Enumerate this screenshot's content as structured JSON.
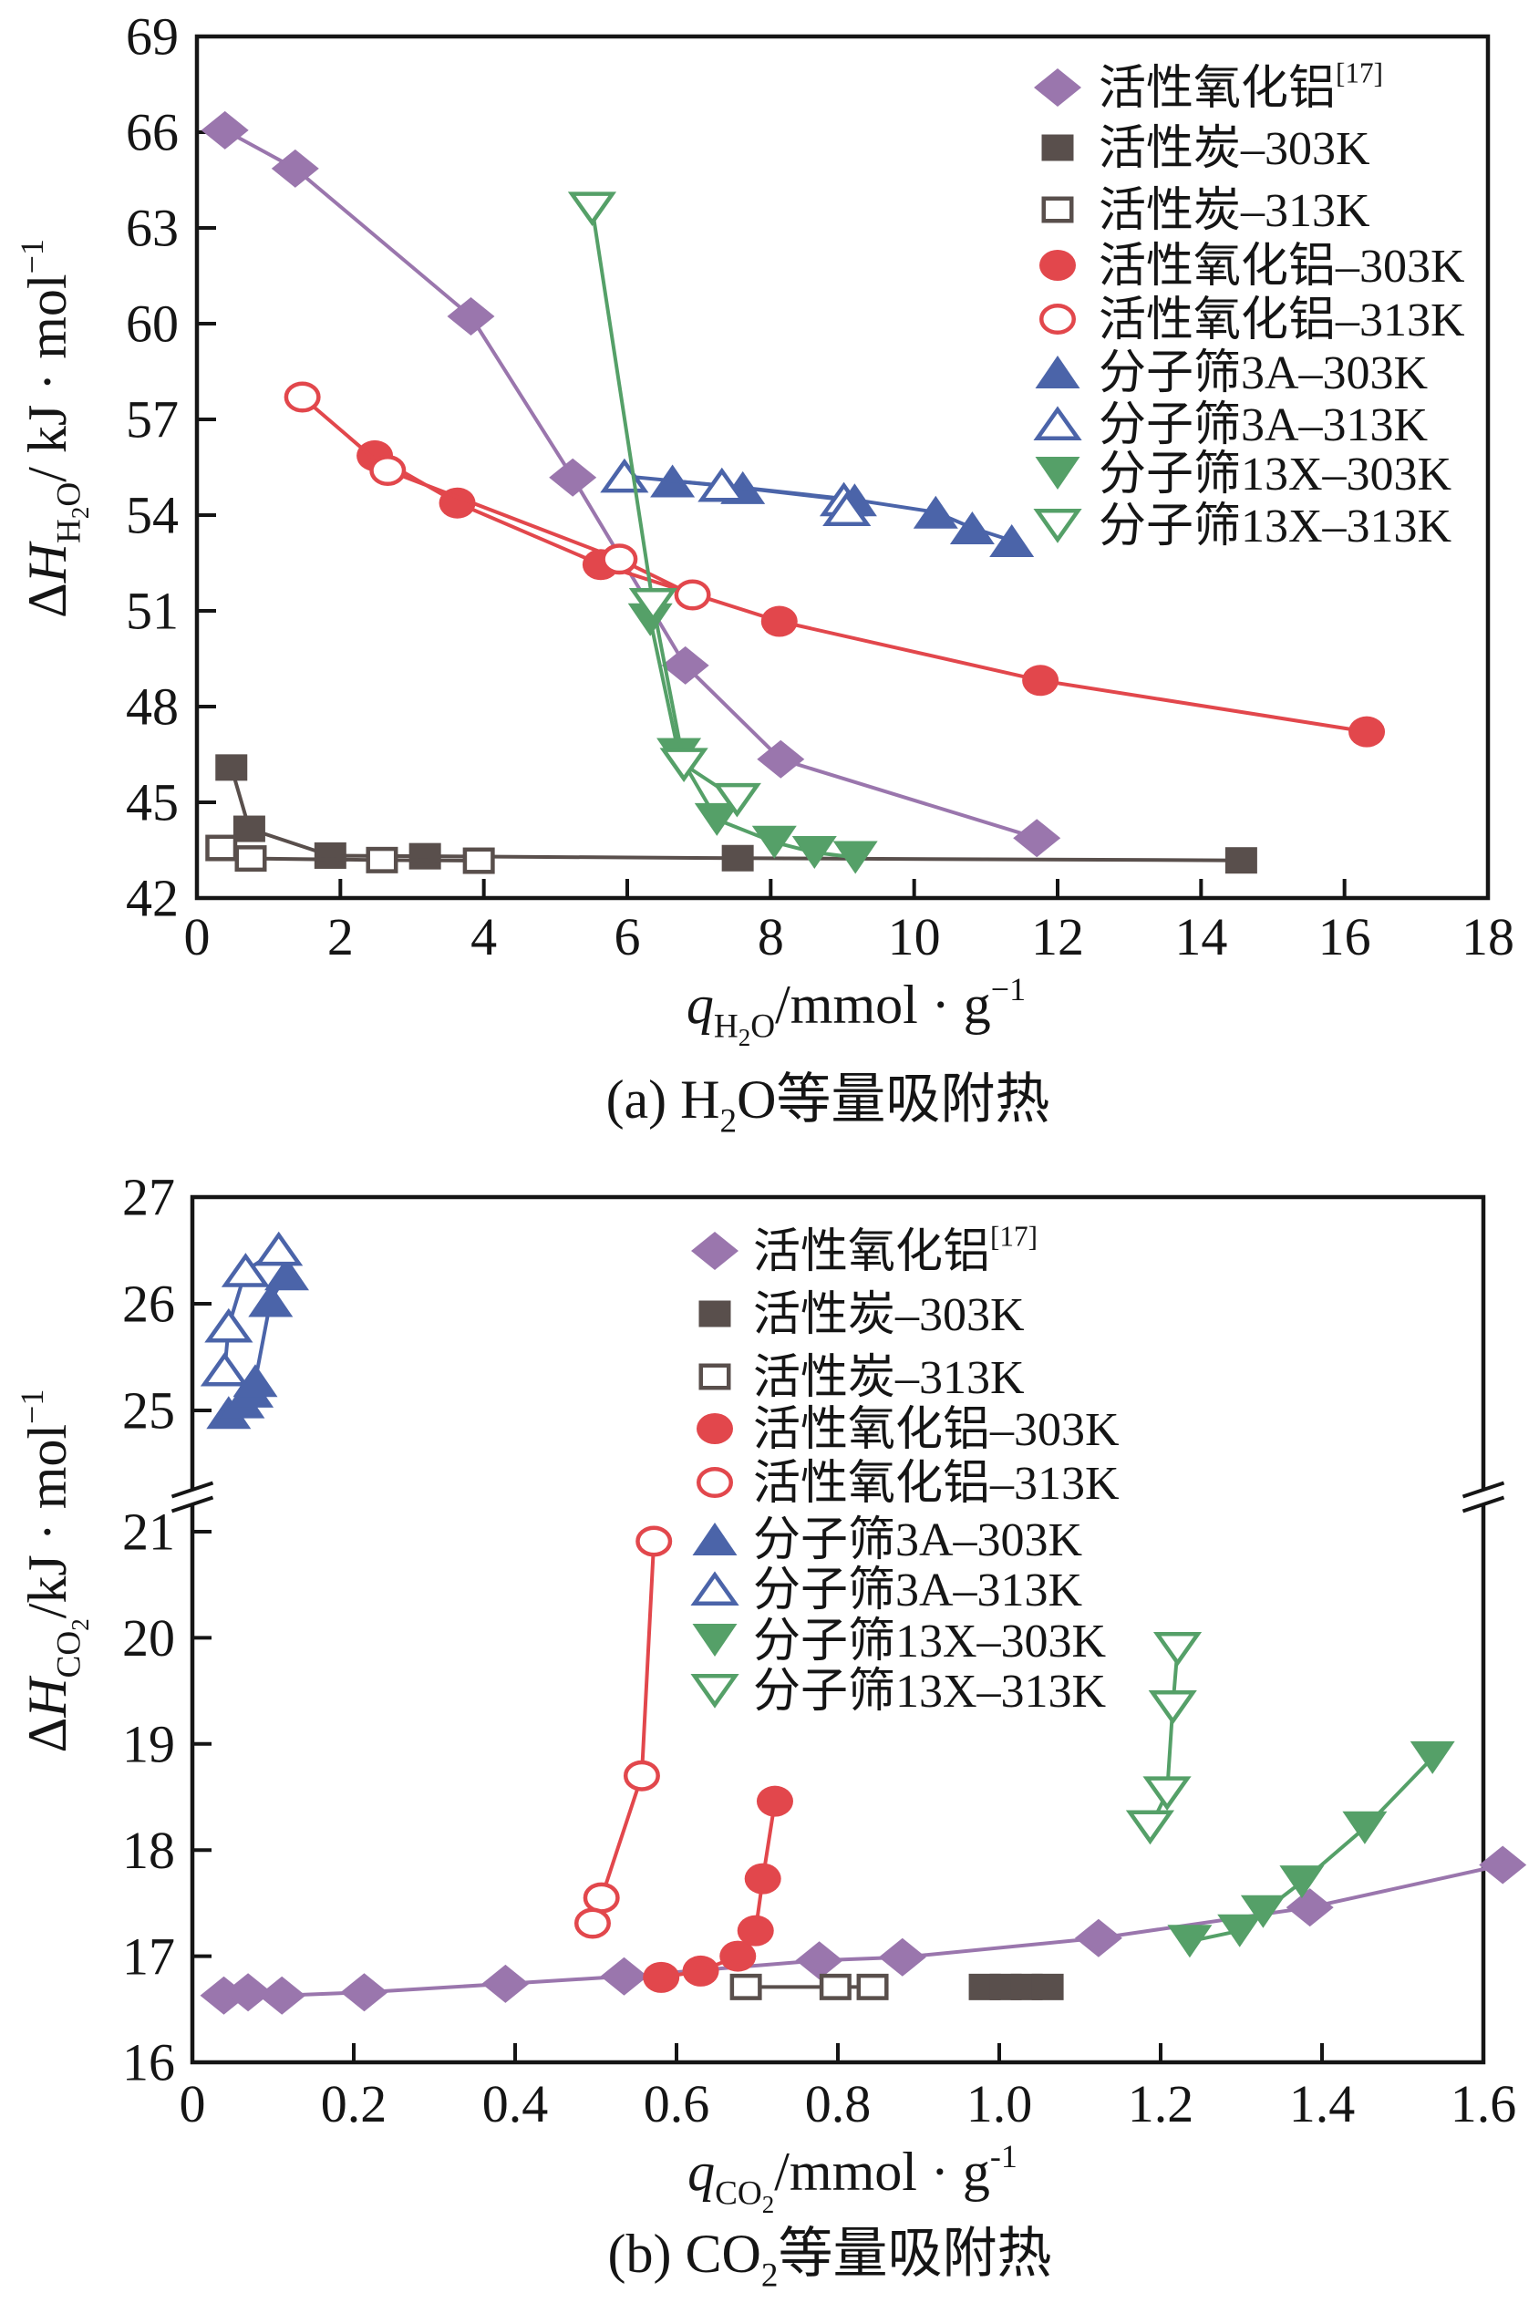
{
  "chart_data": [
    {
      "panel": "a",
      "type": "line",
      "title": "",
      "caption": "(a) H2O等量吸附热",
      "caption_parts": [
        {
          "t": "(a) H",
          "f": "n"
        },
        {
          "t": "2",
          "f": "sub"
        },
        {
          "t": "O等量吸附热",
          "f": "n"
        }
      ],
      "xlabel": "qH2O/mmol · g−1",
      "xlabel_parts": [
        {
          "t": "q",
          "f": "i"
        },
        {
          "t": "H",
          "f": "sub"
        },
        {
          "t": "2",
          "f": "subsub"
        },
        {
          "t": "O",
          "f": "sub"
        },
        {
          "t": "/mmol · g",
          "f": "n"
        },
        {
          "t": "−1",
          "f": "sup"
        }
      ],
      "ylabel": "ΔHH2O/ kJ · mol−1",
      "ylabel_parts": [
        {
          "t": "Δ",
          "f": "n"
        },
        {
          "t": "H",
          "f": "i"
        },
        {
          "t": "H",
          "f": "sub"
        },
        {
          "t": "2",
          "f": "subsub"
        },
        {
          "t": "O",
          "f": "sub"
        },
        {
          "t": "/ kJ · mol",
          "f": "n"
        },
        {
          "t": "−1",
          "f": "sup"
        }
      ],
      "xlim": [
        0,
        18
      ],
      "ylim": [
        42,
        69
      ],
      "xticks": [
        0,
        2,
        4,
        6,
        8,
        10,
        12,
        14,
        16,
        18
      ],
      "xtick_labels": [
        "0",
        "2",
        "4",
        "6",
        "8",
        "10",
        "12",
        "14",
        "16",
        "18"
      ],
      "yticks": [
        42,
        45,
        48,
        51,
        54,
        57,
        60,
        63,
        66,
        69
      ],
      "ytick_labels": [
        "42",
        "45",
        "48",
        "51",
        "54",
        "57",
        "60",
        "63",
        "66",
        "69"
      ],
      "grid": false,
      "legend": "top-right",
      "series": [
        {
          "name": "活性氧化铝",
          "name_sup": "[17]",
          "marker": "diamond",
          "filled": true,
          "color": "#9a76ad",
          "points": [
            [
              0.39,
              66.06
            ],
            [
              1.37,
              64.86
            ],
            [
              3.82,
              60.23
            ],
            [
              5.24,
              55.18
            ],
            [
              6.81,
              49.29
            ],
            [
              8.14,
              46.35
            ],
            [
              11.71,
              43.88
            ]
          ]
        },
        {
          "name": "活性炭–303K",
          "marker": "square",
          "filled": true,
          "color": "#594f4c",
          "points": [
            [
              0.48,
              46.09
            ],
            [
              0.73,
              44.17
            ],
            [
              1.86,
              43.33
            ],
            [
              3.18,
              43.31
            ],
            [
              7.54,
              43.25
            ],
            [
              14.56,
              43.18
            ]
          ]
        },
        {
          "name": "活性炭–313K",
          "marker": "square",
          "filled": false,
          "color": "#594f4c",
          "points": [
            [
              0.34,
              43.57
            ],
            [
              0.75,
              43.24
            ],
            [
              2.58,
              43.19
            ],
            [
              3.93,
              43.17
            ]
          ]
        },
        {
          "name": "活性氧化铝–303K",
          "marker": "circle",
          "filled": true,
          "color": "#e2474c",
          "points": [
            [
              2.48,
              55.86
            ],
            [
              3.63,
              54.38
            ],
            [
              5.63,
              52.45
            ],
            [
              8.12,
              50.67
            ],
            [
              11.76,
              48.82
            ],
            [
              16.31,
              47.21
            ]
          ]
        },
        {
          "name": "活性氧化铝–313K",
          "marker": "circle",
          "filled": false,
          "color": "#e2474c",
          "points": [
            [
              1.47,
              57.7
            ],
            [
              2.66,
              55.4
            ],
            [
              5.89,
              52.62
            ],
            [
              6.91,
              51.5
            ]
          ]
        },
        {
          "name": "分子筛3A–303K",
          "marker": "triangle-up",
          "filled": true,
          "color": "#4b64a9",
          "points": [
            [
              6.63,
              55.07
            ],
            [
              7.61,
              54.86
            ],
            [
              9.17,
              54.48
            ],
            [
              10.3,
              54.09
            ],
            [
              10.81,
              53.6
            ],
            [
              11.36,
              53.2
            ]
          ]
        },
        {
          "name": "分子筛3A–313K",
          "marker": "triangle-up",
          "filled": false,
          "color": "#4b64a9",
          "points": [
            [
              5.96,
              55.22
            ],
            [
              7.32,
              54.93
            ],
            [
              9.02,
              54.48
            ],
            [
              9.06,
              54.17
            ]
          ]
        },
        {
          "name": "分子筛13X–303K",
          "marker": "triangle-down",
          "filled": true,
          "color": "#55a068",
          "points": [
            [
              6.32,
              50.72
            ],
            [
              6.72,
              46.5
            ],
            [
              7.25,
              44.46
            ],
            [
              8.05,
              43.75
            ],
            [
              8.61,
              43.43
            ],
            [
              9.18,
              43.27
            ]
          ]
        },
        {
          "name": "分子筛13X–313K",
          "marker": "triangle-down",
          "filled": false,
          "color": "#55a068",
          "points": [
            [
              5.51,
              63.62
            ],
            [
              6.36,
              51.2
            ],
            [
              6.79,
              46.19
            ],
            [
              7.53,
              45.09
            ]
          ]
        }
      ]
    },
    {
      "panel": "b",
      "type": "line",
      "title": "",
      "caption": "(b) CO2等量吸附热",
      "caption_parts": [
        {
          "t": "(b) CO",
          "f": "n"
        },
        {
          "t": "2",
          "f": "sub"
        },
        {
          "t": "等量吸附热",
          "f": "n"
        }
      ],
      "xlabel": "qCO2/mmol · g-1",
      "xlabel_parts": [
        {
          "t": "q",
          "f": "i"
        },
        {
          "t": "CO",
          "f": "sub"
        },
        {
          "t": "2",
          "f": "subsub"
        },
        {
          "t": "/mmol · g",
          "f": "n"
        },
        {
          "t": "-1",
          "f": "sup"
        }
      ],
      "ylabel": "ΔHCO2/kJ · mol−1",
      "ylabel_parts": [
        {
          "t": "Δ",
          "f": "n"
        },
        {
          "t": "H",
          "f": "i"
        },
        {
          "t": "CO",
          "f": "sub"
        },
        {
          "t": "2",
          "f": "subsub"
        },
        {
          "t": "/kJ · mol",
          "f": "n"
        },
        {
          "t": "−1",
          "f": "sup"
        }
      ],
      "xlim": [
        0,
        1.6
      ],
      "ylim": [
        16,
        27
      ],
      "axis_break": [
        21,
        25
      ],
      "xticks": [
        0,
        0.2,
        0.4,
        0.6,
        0.8,
        1.0,
        1.2,
        1.4,
        1.6
      ],
      "xtick_labels": [
        "0",
        "0.2",
        "0.4",
        "0.6",
        "0.8",
        "1.0",
        "1.2",
        "1.4",
        "1.6"
      ],
      "yticks": [
        16,
        17,
        18,
        19,
        20,
        21,
        25,
        26,
        27
      ],
      "ytick_labels": [
        "16",
        "17",
        "18",
        "19",
        "20",
        "21",
        "25",
        "26",
        "27"
      ],
      "grid": false,
      "legend": "top-center",
      "series": [
        {
          "name": "活性氧化铝",
          "name_sup": "[17]",
          "marker": "diamond",
          "filled": true,
          "color": "#9a76ad",
          "points": [
            [
              0.039,
              16.63
            ],
            [
              0.069,
              16.66
            ],
            [
              0.111,
              16.63
            ],
            [
              0.213,
              16.66
            ],
            [
              0.388,
              16.74
            ],
            [
              0.535,
              16.81
            ],
            [
              0.777,
              16.96
            ],
            [
              0.88,
              16.99
            ],
            [
              1.123,
              17.17
            ],
            [
              1.385,
              17.46
            ],
            [
              1.624,
              17.86
            ]
          ]
        },
        {
          "name": "活性炭–303K",
          "marker": "square",
          "filled": true,
          "color": "#594f4c",
          "points": [
            [
              0.982,
              16.71
            ],
            [
              1.008,
              16.71
            ],
            [
              1.034,
              16.71
            ],
            [
              1.06,
              16.71
            ]
          ]
        },
        {
          "name": "活性炭–313K",
          "marker": "square",
          "filled": false,
          "color": "#594f4c",
          "points": [
            [
              0.686,
              16.71
            ],
            [
              0.797,
              16.71
            ],
            [
              0.843,
              16.71
            ]
          ]
        },
        {
          "name": "活性氧化铝–303K",
          "marker": "circle",
          "filled": true,
          "color": "#e2474c",
          "points": [
            [
              0.581,
              16.8
            ],
            [
              0.63,
              16.86
            ],
            [
              0.676,
              17.0
            ],
            [
              0.698,
              17.24
            ],
            [
              0.707,
              17.73
            ],
            [
              0.722,
              18.46
            ]
          ]
        },
        {
          "name": "活性氧化铝–313K",
          "marker": "circle",
          "filled": false,
          "color": "#e2474c",
          "points": [
            [
              0.572,
              20.91
            ],
            [
              0.557,
              18.7
            ],
            [
              0.507,
              17.55
            ],
            [
              0.496,
              17.31
            ]
          ]
        },
        {
          "name": "分子筛3A–303K",
          "marker": "triangle-up",
          "filled": true,
          "color": "#4b64a9",
          "points": [
            [
              0.045,
              24.98
            ],
            [
              0.062,
              25.08
            ],
            [
              0.073,
              25.18
            ],
            [
              0.078,
              25.28
            ],
            [
              0.097,
              26.03
            ],
            [
              0.117,
              26.28
            ]
          ]
        },
        {
          "name": "分子筛3A–313K",
          "marker": "triangle-up",
          "filled": false,
          "color": "#4b64a9",
          "points": [
            [
              0.04,
              25.38
            ],
            [
              0.045,
              25.79
            ],
            [
              0.066,
              26.31
            ],
            [
              0.107,
              26.51
            ]
          ]
        },
        {
          "name": "分子筛13X–303K",
          "marker": "triangle-down",
          "filled": true,
          "color": "#55a068",
          "points": [
            [
              1.236,
              17.14
            ],
            [
              1.298,
              17.24
            ],
            [
              1.327,
              17.42
            ],
            [
              1.375,
              17.7
            ],
            [
              1.453,
              18.21
            ],
            [
              1.537,
              18.87
            ]
          ]
        },
        {
          "name": "分子筛13X–313K",
          "marker": "triangle-down",
          "filled": false,
          "color": "#55a068",
          "points": [
            [
              1.221,
              19.9
            ],
            [
              1.215,
              19.35
            ],
            [
              1.208,
              18.54
            ],
            [
              1.187,
              18.22
            ]
          ]
        }
      ]
    }
  ]
}
